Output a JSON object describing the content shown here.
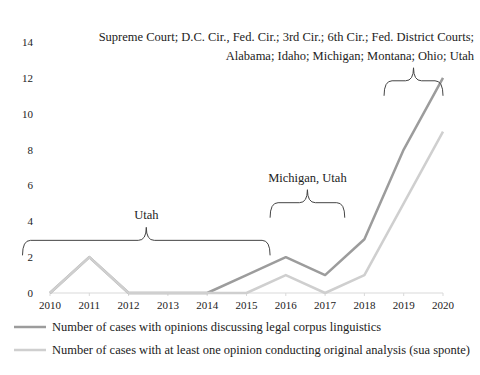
{
  "chart_data": {
    "type": "line",
    "x": [
      2010,
      2011,
      2012,
      2013,
      2014,
      2015,
      2016,
      2017,
      2018,
      2019,
      2020
    ],
    "xlim": [
      2010,
      2020
    ],
    "xticks": [
      2010,
      2011,
      2012,
      2013,
      2014,
      2015,
      2016,
      2017,
      2018,
      2019,
      2020
    ],
    "ylim": [
      0,
      14
    ],
    "yticks": [
      0,
      2,
      4,
      6,
      8,
      10,
      12,
      14
    ],
    "grid": false,
    "legend": "bottom",
    "series": [
      {
        "name": "Number of cases with opinions discussing legal corpus linguistics",
        "color": "#9c9c9c",
        "values": [
          0,
          2,
          0,
          0,
          0,
          1,
          2,
          1,
          3,
          8,
          12
        ]
      },
      {
        "name": "Number of cases with at least one opinion conducting original analysis (sua sponte)",
        "color": "#cfcfcf",
        "values": [
          0,
          2,
          0,
          0,
          0,
          0,
          1,
          0,
          1,
          5,
          9
        ]
      }
    ],
    "annotations": [
      {
        "text": [
          "Utah"
        ],
        "span": [
          2009.3,
          2015.6
        ],
        "y": 2.1
      },
      {
        "text": [
          "Michigan, Utah"
        ],
        "span": [
          2015.6,
          2017.5
        ],
        "y": 4.2
      },
      {
        "text": [
          "Supreme Court; D.C. Cir., Fed. Cir.; 3rd Cir.; 6th Cir.; Fed. District Courts;",
          "Alabama; Idaho; Michigan; Montana; Ohio; Utah"
        ],
        "span": [
          2018.5,
          2020
        ],
        "y": 11
      }
    ]
  }
}
